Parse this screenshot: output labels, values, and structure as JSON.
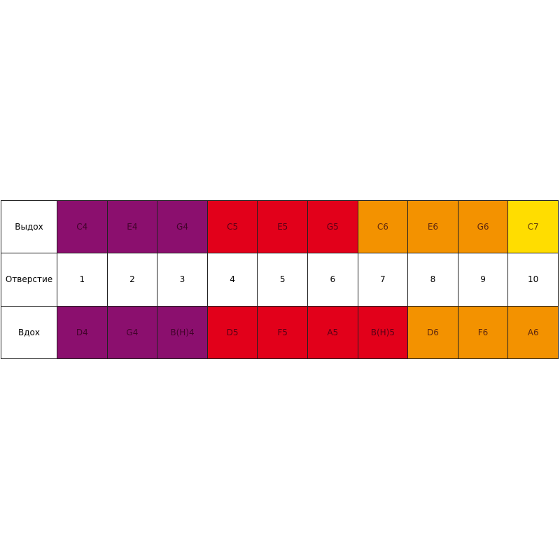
{
  "colors": {
    "purple": "#8b0f6e",
    "red": "#e2001a",
    "orange": "#f39200",
    "yellow": "#ffdd00",
    "white": "#ffffff"
  },
  "rows": [
    {
      "label": "Выдох",
      "cells": [
        {
          "text": "C4",
          "color": "purple"
        },
        {
          "text": "E4",
          "color": "purple"
        },
        {
          "text": "G4",
          "color": "purple"
        },
        {
          "text": "C5",
          "color": "red"
        },
        {
          "text": "E5",
          "color": "red"
        },
        {
          "text": "G5",
          "color": "red"
        },
        {
          "text": "C6",
          "color": "orange"
        },
        {
          "text": "E6",
          "color": "orange"
        },
        {
          "text": "G6",
          "color": "orange"
        },
        {
          "text": "C7",
          "color": "yellow"
        }
      ]
    },
    {
      "label": "Отверстие",
      "cells": [
        {
          "text": "1",
          "color": "white"
        },
        {
          "text": "2",
          "color": "white"
        },
        {
          "text": "3",
          "color": "white"
        },
        {
          "text": "4",
          "color": "white"
        },
        {
          "text": "5",
          "color": "white"
        },
        {
          "text": "6",
          "color": "white"
        },
        {
          "text": "7",
          "color": "white"
        },
        {
          "text": "8",
          "color": "white"
        },
        {
          "text": "9",
          "color": "white"
        },
        {
          "text": "10",
          "color": "white"
        }
      ]
    },
    {
      "label": "Вдох",
      "cells": [
        {
          "text": "D4",
          "color": "purple"
        },
        {
          "text": "G4",
          "color": "purple"
        },
        {
          "text": "B(H)4",
          "color": "purple"
        },
        {
          "text": "D5",
          "color": "red"
        },
        {
          "text": "F5",
          "color": "red"
        },
        {
          "text": "A5",
          "color": "red"
        },
        {
          "text": "B(H)5",
          "color": "red"
        },
        {
          "text": "D6",
          "color": "orange"
        },
        {
          "text": "F6",
          "color": "orange"
        },
        {
          "text": "A6",
          "color": "orange"
        }
      ]
    }
  ]
}
